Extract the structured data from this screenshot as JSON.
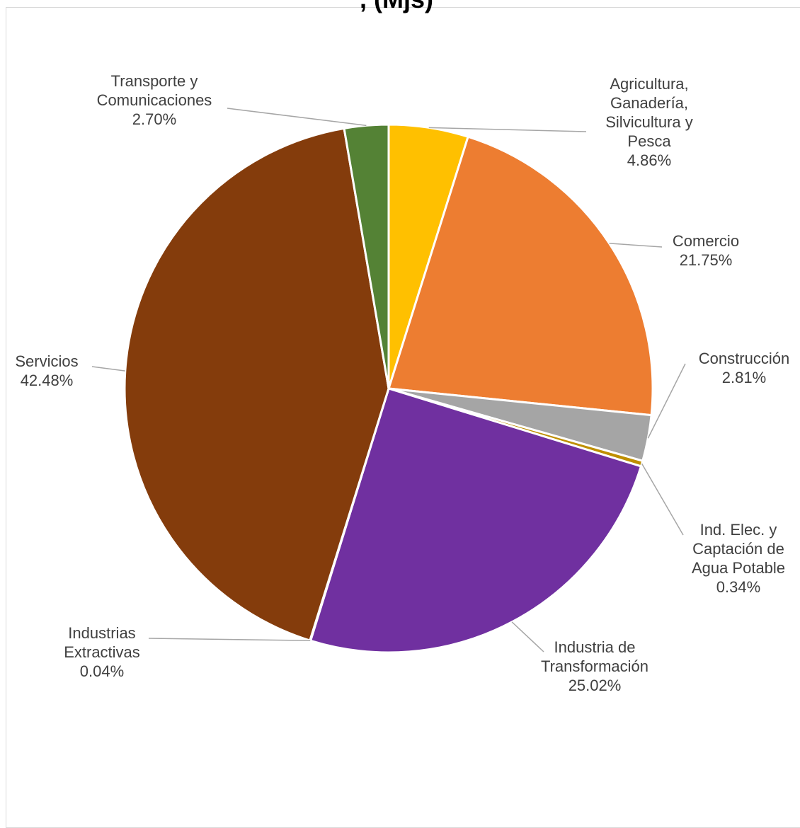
{
  "chart_data": {
    "type": "pie",
    "title": ", (Mjs)",
    "slices": [
      {
        "label": "Agricultura, Ganadería, Silvicultura y Pesca",
        "value": 4.86,
        "display": "4.86%",
        "color": "#FFC000"
      },
      {
        "label": "Comercio",
        "value": 21.75,
        "display": "21.75%",
        "color": "#ED7D31"
      },
      {
        "label": "Construcción",
        "value": 2.81,
        "display": "2.81%",
        "color": "#A5A5A5"
      },
      {
        "label": "Ind. Elec. y Captación de Agua Potable",
        "value": 0.34,
        "display": "0.34%",
        "color": "#BF8F00"
      },
      {
        "label": "Industria de Transformación",
        "value": 25.02,
        "display": "25.02%",
        "color": "#7030A0"
      },
      {
        "label": "Industrias Extractivas",
        "value": 0.04,
        "display": "0.04%",
        "color": "#595959"
      },
      {
        "label": "Servicios",
        "value": 42.48,
        "display": "42.48%",
        "color": "#843C0C"
      },
      {
        "label": "Transporte y Comunicaciones",
        "value": 2.7,
        "display": "2.70%",
        "color": "#548235"
      }
    ]
  }
}
